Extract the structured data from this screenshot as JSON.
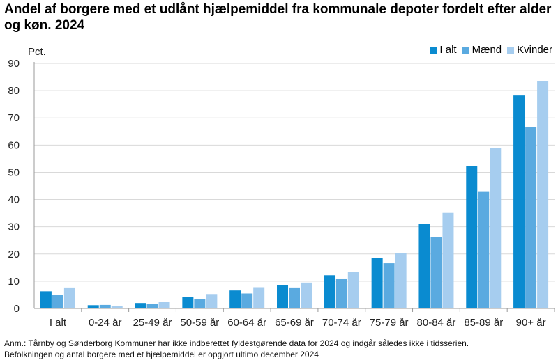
{
  "chart_data": {
    "type": "bar",
    "title": "Andel af borgere med et udlånt hjælpemiddel fra kommunale depoter fordelt efter alder og køn. 2024",
    "ylabel": "Pct.",
    "xlabel": "",
    "ylim": [
      0,
      90
    ],
    "yticks": [
      0,
      10,
      20,
      30,
      40,
      50,
      60,
      70,
      80,
      90
    ],
    "grid": true,
    "legend_position": "top-right",
    "categories": [
      "I alt",
      "0-24 år",
      "25-49 år",
      "50-59 år",
      "60-64 år",
      "65-69 år",
      "70-74 år",
      "75-79 år",
      "80-84 år",
      "85-89 år",
      "90+ år"
    ],
    "series": [
      {
        "name": "I alt",
        "color": "#0a8bd0",
        "values": [
          6.3,
          1.2,
          2.0,
          4.3,
          6.6,
          8.6,
          12.2,
          18.6,
          31.0,
          52.4,
          78.2
        ]
      },
      {
        "name": "Mænd",
        "color": "#5aaae0",
        "values": [
          5.0,
          1.3,
          1.6,
          3.4,
          5.5,
          7.7,
          11.0,
          16.6,
          26.1,
          42.8,
          66.6
        ]
      },
      {
        "name": "Kvinder",
        "color": "#a6cdef",
        "values": [
          7.7,
          1.0,
          2.5,
          5.3,
          7.8,
          9.5,
          13.4,
          20.4,
          35.1,
          58.9,
          83.6
        ]
      }
    ]
  },
  "notes": {
    "line1": "Anm.: Tårnby og Sønderborg Kommuner har ikke indberettet fyldestgørende data for 2024 og indgår således ikke i tidsserien.",
    "line2": "Befolkningen og antal borgere med et hjælpemiddel er opgjort ultimo december 2024"
  }
}
